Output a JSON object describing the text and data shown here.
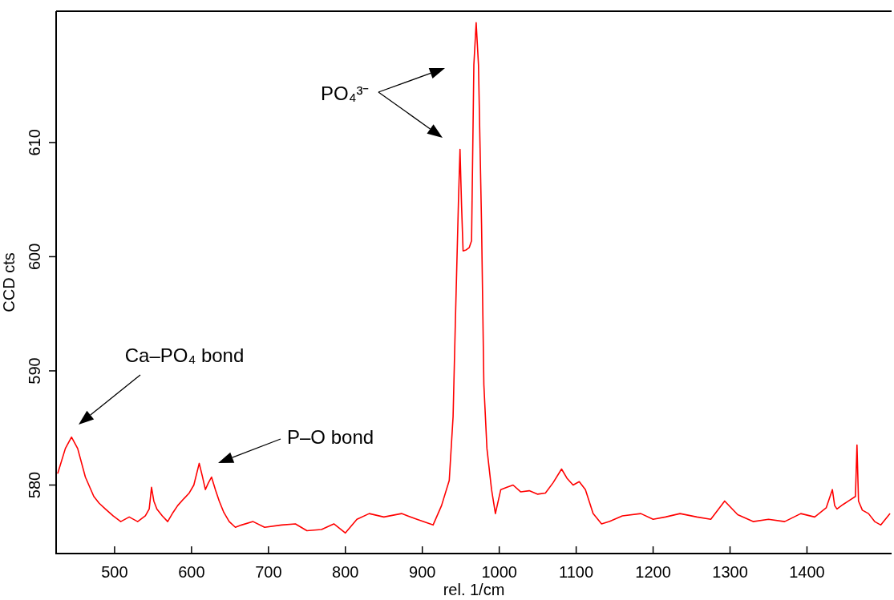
{
  "chart_data": {
    "type": "line",
    "xlabel": "rel. 1/cm",
    "ylabel": "CCD cts",
    "xlim": [
      424,
      1510
    ],
    "ylim": [
      574.0,
      621.5
    ],
    "xticks": [
      500,
      600,
      700,
      800,
      900,
      1000,
      1100,
      1200,
      1300,
      1400
    ],
    "yticks": [
      580,
      590,
      600,
      610
    ],
    "grid": false,
    "legend": false,
    "marker": "none",
    "line_style": "solid",
    "series": [
      {
        "color": "#ff0000",
        "x": [
          426,
          436,
          444,
          452,
          462,
          473,
          480,
          488,
          498,
          508,
          519,
          530,
          540,
          545,
          548,
          551,
          555,
          562,
          569,
          576,
          582,
          590,
          597,
          603,
          610,
          614,
          618,
          622,
          626,
          631,
          636,
          642,
          649,
          657,
          665,
          680,
          695,
          717,
          735,
          750,
          769,
          785,
          800,
          815,
          831,
          850,
          873,
          893,
          914,
          925,
          935,
          940,
          943,
          947,
          949,
          951,
          953,
          957,
          961,
          964,
          967,
          970,
          973,
          977,
          980,
          984,
          990,
          995,
          1002,
          1010,
          1018,
          1028,
          1039,
          1050,
          1060,
          1070,
          1081,
          1088,
          1096,
          1104,
          1112,
          1122,
          1133,
          1143,
          1160,
          1184,
          1200,
          1216,
          1235,
          1257,
          1275,
          1293,
          1310,
          1330,
          1350,
          1371,
          1392,
          1410,
          1425,
          1433,
          1436,
          1439,
          1447,
          1454,
          1463,
          1465,
          1467,
          1472,
          1480,
          1488,
          1496,
          1508
        ],
        "values": [
          581.0,
          583.2,
          584.2,
          583.2,
          580.7,
          579.0,
          578.4,
          577.9,
          577.3,
          576.8,
          577.2,
          576.8,
          577.3,
          577.9,
          579.8,
          578.6,
          577.9,
          577.3,
          576.8,
          577.6,
          578.2,
          578.8,
          579.3,
          580.0,
          581.9,
          580.8,
          579.6,
          580.2,
          580.7,
          579.6,
          578.6,
          577.6,
          576.8,
          576.3,
          576.5,
          576.8,
          576.3,
          576.5,
          576.6,
          576.0,
          576.1,
          576.6,
          575.8,
          577.0,
          577.5,
          577.2,
          577.5,
          577.0,
          576.5,
          578.2,
          580.4,
          586.0,
          594.4,
          604.9,
          609.4,
          604.5,
          600.5,
          600.6,
          600.8,
          601.4,
          616.8,
          620.5,
          616.8,
          602.8,
          588.8,
          583.2,
          579.6,
          577.5,
          579.6,
          579.8,
          580.0,
          579.4,
          579.5,
          579.2,
          579.3,
          580.2,
          581.4,
          580.6,
          580.0,
          580.3,
          579.6,
          577.5,
          576.6,
          576.8,
          577.3,
          577.5,
          577.0,
          577.2,
          577.5,
          577.2,
          577.0,
          578.6,
          577.4,
          576.8,
          577.0,
          576.8,
          577.5,
          577.2,
          578.0,
          579.6,
          578.2,
          577.9,
          578.3,
          578.6,
          579.0,
          583.5,
          578.6,
          577.8,
          577.5,
          576.8,
          576.5,
          577.5
        ]
      }
    ],
    "annotations": [
      "Ca–PO₄ bond",
      "P–O bond",
      "PO₄³⁻"
    ]
  }
}
